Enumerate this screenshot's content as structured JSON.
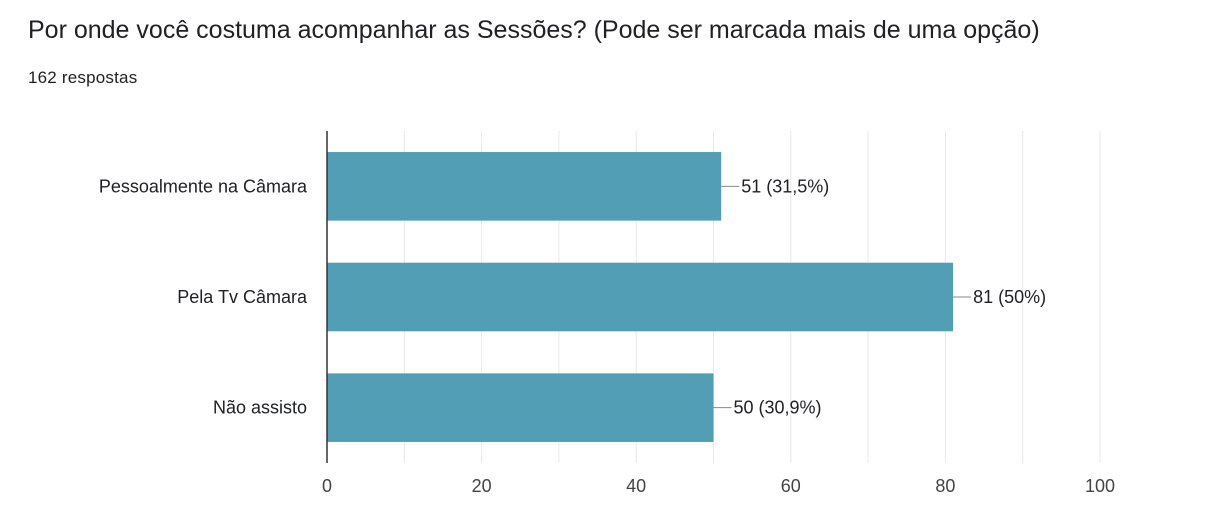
{
  "header": {
    "title": "Por onde você costuma acompanhar as Sessões? (Pode ser marcada mais de uma opção)",
    "responses": "162 respostas"
  },
  "colors": {
    "bar": "#529fb5",
    "grid": "#e8e8e8",
    "axis": "#333333"
  },
  "chart_data": {
    "type": "bar",
    "orientation": "horizontal",
    "categories": [
      "Pessoalmente na Câmara",
      "Pela Tv Câmara",
      "Não assisto"
    ],
    "values": [
      51,
      81,
      50
    ],
    "data_labels": [
      "51 (31,5%)",
      "81 (50%)",
      "50 (30,9%)"
    ],
    "xlim": [
      0,
      100
    ],
    "xticks": [
      "0",
      "20",
      "40",
      "60",
      "80",
      "100"
    ],
    "grid": true
  }
}
